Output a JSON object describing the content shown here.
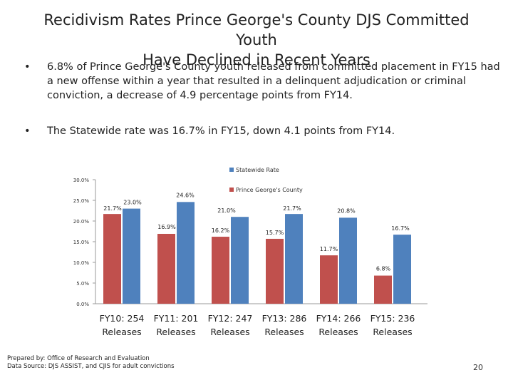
{
  "title_line1": "Recidivism Rates Prince George's County DJS Committed Youth",
  "title_line2": "Have Declined in Recent Years",
  "bullets": [
    "6.8% of Prince George's County youth released from committed placement in FY15 had a new offense within a year that resulted in a delinquent adjudication or criminal conviction, a decrease of 4.9 percentage points from FY14.",
    "The Statewide rate was 16.7% in FY15, down 4.1 points from FY14."
  ],
  "bullet_glyph": "•",
  "chart_data": {
    "type": "bar",
    "categories": [
      [
        "FY10: 254",
        "Releases"
      ],
      [
        "FY11: 201",
        "Releases"
      ],
      [
        "FY12: 247",
        "Releases"
      ],
      [
        "FY13: 286",
        "Releases"
      ],
      [
        "FY14: 266",
        "Releases"
      ],
      [
        "FY15: 236",
        "Releases"
      ]
    ],
    "series": [
      {
        "name": "Prince George's County",
        "values": [
          21.7,
          16.9,
          16.2,
          15.7,
          11.7,
          6.8
        ],
        "labels": [
          "21.7%",
          "16.9%",
          "16.2%",
          "15.7%",
          "11.7%",
          "6.8%"
        ],
        "color": "#c0504d"
      },
      {
        "name": "Statewide Rate",
        "values": [
          23.0,
          24.6,
          21.0,
          21.7,
          20.8,
          16.7
        ],
        "labels": [
          "23.0%",
          "24.6%",
          "21.0%",
          "21.7%",
          "20.8%",
          "16.7%"
        ],
        "color": "#4f81bd"
      }
    ],
    "legend": [
      {
        "name": "Statewide Rate",
        "color": "#4f81bd"
      },
      {
        "name": "Prince George's County",
        "color": "#c0504d"
      }
    ],
    "yticks": [
      0,
      5,
      10,
      15,
      20,
      25,
      30
    ],
    "ytick_labels": [
      "0.0%",
      "5.0%",
      "10.0%",
      "15.0%",
      "20.0%",
      "25.0%",
      "30.0%"
    ],
    "ylim": [
      0,
      30
    ],
    "xlabel": "",
    "ylabel": ""
  },
  "footer": {
    "line1": "Prepared by: Office of Research and Evaluation",
    "line2": "Data Source: DJS ASSIST, and CJIS for adult convictions"
  },
  "page_number": "20"
}
